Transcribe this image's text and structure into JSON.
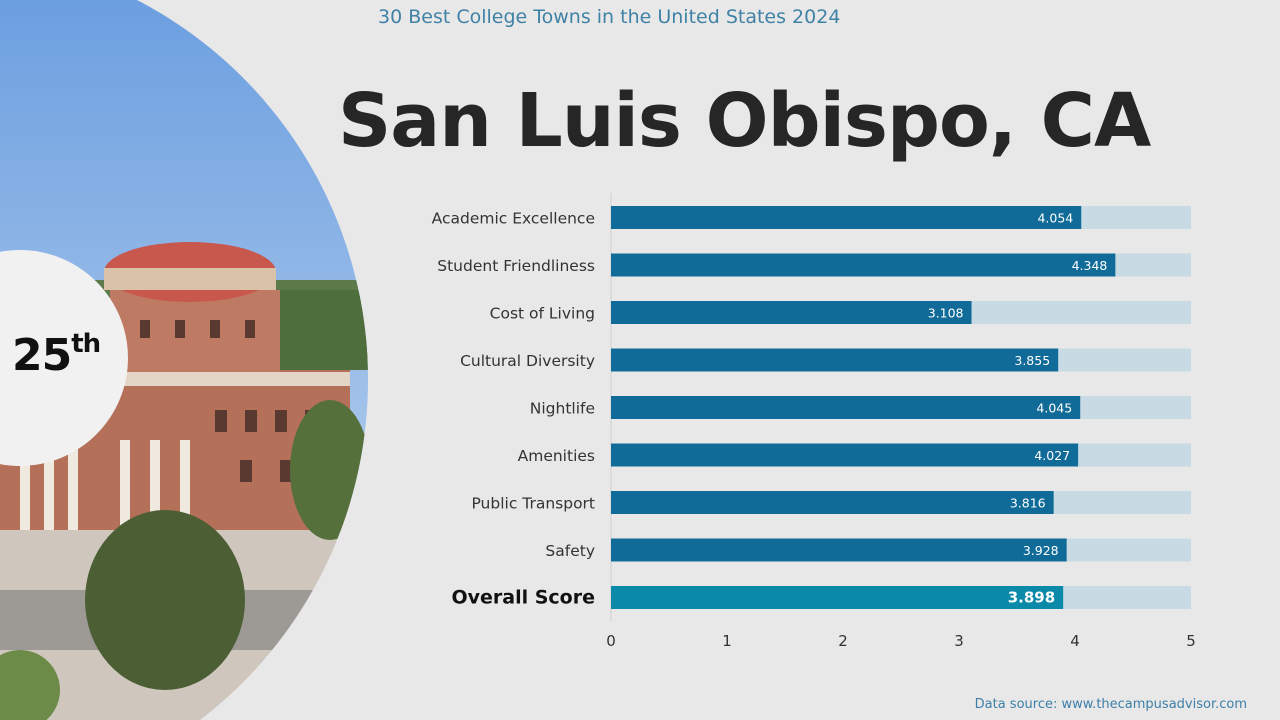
{
  "header": {
    "supertitle": "30 Best College Towns in the United States 2024",
    "city": "San Luis Obispo, CA"
  },
  "rank": {
    "number": "25",
    "suffix": "th"
  },
  "footer": {
    "source": "Data source: www.thecampusadvisor.com"
  },
  "colors": {
    "bar": "#106b98",
    "overall_bar": "#0a8aa8",
    "track": "#c8dbe5",
    "label": "#333333"
  },
  "chart_data": {
    "type": "bar",
    "orientation": "horizontal",
    "categories": [
      "Academic Excellence",
      "Student Friendliness",
      "Cost of Living",
      "Cultural Diversity",
      "Nightlife",
      "Amenities",
      "Public Transport",
      "Safety",
      "Overall Score"
    ],
    "values": [
      4.054,
      4.348,
      3.108,
      3.855,
      4.045,
      4.027,
      3.816,
      3.928,
      3.898
    ],
    "value_labels": [
      "4.054",
      "4.348",
      "3.108",
      "3.855",
      "4.045",
      "4.027",
      "3.816",
      "3.928",
      "3.898"
    ],
    "highlight_index": 8,
    "xlim": [
      0,
      5
    ],
    "xticks": [
      "0",
      "1",
      "2",
      "3",
      "4",
      "5"
    ],
    "title": "",
    "xlabel": "",
    "ylabel": "",
    "grid": false,
    "legend": "none"
  }
}
